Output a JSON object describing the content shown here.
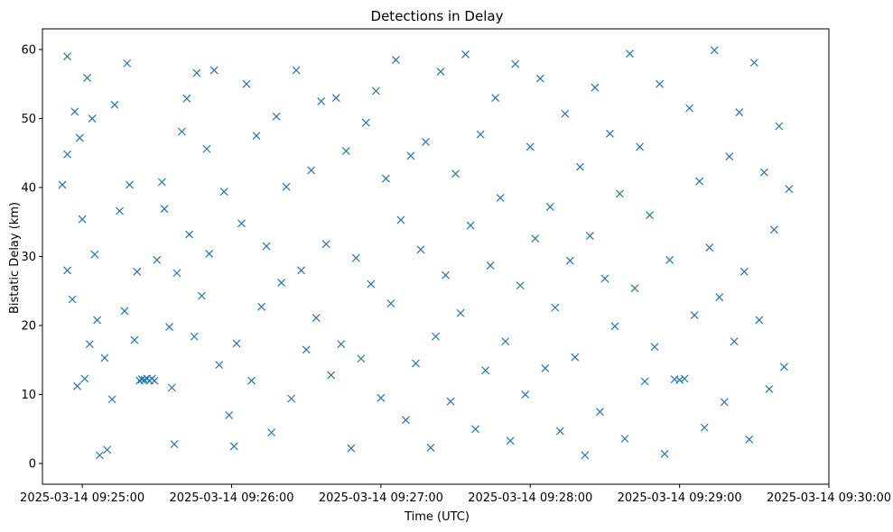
{
  "chart_data": {
    "type": "scatter",
    "title": "Detections in Delay",
    "xlabel": "Time (UTC)",
    "ylabel": "Bistatic Delay (km)",
    "marker": "x",
    "color": "#1f77b4",
    "grid": false,
    "xlim": [
      "2025-03-14 09:24:44",
      "2025-03-14 09:30:00"
    ],
    "ylim": [
      -3,
      63
    ],
    "x_ticks": [
      "2025-03-14 09:25:00",
      "2025-03-14 09:26:00",
      "2025-03-14 09:27:00",
      "2025-03-14 09:28:00",
      "2025-03-14 09:29:00",
      "2025-03-14 09:30:00"
    ],
    "y_ticks": [
      0,
      10,
      20,
      30,
      40,
      50,
      60
    ],
    "series": [
      {
        "points": [
          [
            "2025-03-14 09:24:52",
            40.4
          ],
          [
            "2025-03-14 09:24:54",
            59.0
          ],
          [
            "2025-03-14 09:24:54",
            44.8
          ],
          [
            "2025-03-14 09:24:54",
            28.0
          ],
          [
            "2025-03-14 09:24:56",
            23.8
          ],
          [
            "2025-03-14 09:24:57",
            51.0
          ],
          [
            "2025-03-14 09:24:58",
            11.2
          ],
          [
            "2025-03-14 09:24:59",
            47.2
          ],
          [
            "2025-03-14 09:25:00",
            35.4
          ],
          [
            "2025-03-14 09:25:01",
            12.3
          ],
          [
            "2025-03-14 09:25:02",
            55.9
          ],
          [
            "2025-03-14 09:25:03",
            17.3
          ],
          [
            "2025-03-14 09:25:04",
            50.0
          ],
          [
            "2025-03-14 09:25:05",
            30.3
          ],
          [
            "2025-03-14 09:25:06",
            20.8
          ],
          [
            "2025-03-14 09:25:07",
            1.2
          ],
          [
            "2025-03-14 09:25:09",
            15.3
          ],
          [
            "2025-03-14 09:25:10",
            2.0
          ],
          [
            "2025-03-14 09:25:12",
            9.3
          ],
          [
            "2025-03-14 09:25:13",
            52.0
          ],
          [
            "2025-03-14 09:25:15",
            36.6
          ],
          [
            "2025-03-14 09:25:17",
            22.1
          ],
          [
            "2025-03-14 09:25:18",
            58.0
          ],
          [
            "2025-03-14 09:25:19",
            40.4
          ],
          [
            "2025-03-14 09:25:21",
            17.9
          ],
          [
            "2025-03-14 09:25:22",
            27.8
          ],
          [
            "2025-03-14 09:25:23",
            12.0
          ],
          [
            "2025-03-14 09:25:24",
            12.2
          ],
          [
            "2025-03-14 09:25:25",
            12.1
          ],
          [
            "2025-03-14 09:25:26",
            12.3
          ],
          [
            "2025-03-14 09:25:27",
            12.0
          ],
          [
            "2025-03-14 09:25:28",
            12.3
          ],
          [
            "2025-03-14 09:25:29",
            12.0
          ],
          [
            "2025-03-14 09:25:30",
            29.5
          ],
          [
            "2025-03-14 09:25:32",
            40.8
          ],
          [
            "2025-03-14 09:25:33",
            36.9
          ],
          [
            "2025-03-14 09:25:35",
            19.8
          ],
          [
            "2025-03-14 09:25:36",
            11.0
          ],
          [
            "2025-03-14 09:25:37",
            2.8
          ],
          [
            "2025-03-14 09:25:38",
            27.6
          ],
          [
            "2025-03-14 09:25:40",
            48.1
          ],
          [
            "2025-03-14 09:25:42",
            52.9
          ],
          [
            "2025-03-14 09:25:43",
            33.2
          ],
          [
            "2025-03-14 09:25:45",
            18.4
          ],
          [
            "2025-03-14 09:25:46",
            56.6
          ],
          [
            "2025-03-14 09:25:48",
            24.3
          ],
          [
            "2025-03-14 09:25:50",
            45.6
          ],
          [
            "2025-03-14 09:25:51",
            30.4
          ],
          [
            "2025-03-14 09:25:53",
            57.0
          ],
          [
            "2025-03-14 09:25:55",
            14.3
          ],
          [
            "2025-03-14 09:25:57",
            39.4
          ],
          [
            "2025-03-14 09:25:59",
            7.0
          ],
          [
            "2025-03-14 09:26:01",
            2.5
          ],
          [
            "2025-03-14 09:26:02",
            17.4
          ],
          [
            "2025-03-14 09:26:04",
            34.8
          ],
          [
            "2025-03-14 09:26:06",
            55.0
          ],
          [
            "2025-03-14 09:26:08",
            12.0
          ],
          [
            "2025-03-14 09:26:10",
            47.5
          ],
          [
            "2025-03-14 09:26:12",
            22.7
          ],
          [
            "2025-03-14 09:26:14",
            31.5
          ],
          [
            "2025-03-14 09:26:16",
            4.5
          ],
          [
            "2025-03-14 09:26:18",
            50.3
          ],
          [
            "2025-03-14 09:26:20",
            26.2
          ],
          [
            "2025-03-14 09:26:22",
            40.1
          ],
          [
            "2025-03-14 09:26:24",
            9.4
          ],
          [
            "2025-03-14 09:26:26",
            57.0
          ],
          [
            "2025-03-14 09:26:28",
            28.0
          ],
          [
            "2025-03-14 09:26:30",
            16.5
          ],
          [
            "2025-03-14 09:26:32",
            42.5
          ],
          [
            "2025-03-14 09:26:34",
            21.1
          ],
          [
            "2025-03-14 09:26:36",
            52.5
          ],
          [
            "2025-03-14 09:26:38",
            31.8
          ],
          [
            "2025-03-14 09:26:40",
            12.8
          ],
          [
            "2025-03-14 09:26:42",
            53.0
          ],
          [
            "2025-03-14 09:26:44",
            17.3
          ],
          [
            "2025-03-14 09:26:46",
            45.3
          ],
          [
            "2025-03-14 09:26:48",
            2.2
          ],
          [
            "2025-03-14 09:26:50",
            29.8
          ],
          [
            "2025-03-14 09:26:52",
            15.2
          ],
          [
            "2025-03-14 09:26:54",
            49.4
          ],
          [
            "2025-03-14 09:26:56",
            26.0
          ],
          [
            "2025-03-14 09:26:58",
            54.0
          ],
          [
            "2025-03-14 09:27:00",
            9.5
          ],
          [
            "2025-03-14 09:27:02",
            41.3
          ],
          [
            "2025-03-14 09:27:04",
            23.2
          ],
          [
            "2025-03-14 09:27:06",
            58.5
          ],
          [
            "2025-03-14 09:27:08",
            35.3
          ],
          [
            "2025-03-14 09:27:10",
            6.3
          ],
          [
            "2025-03-14 09:27:12",
            44.6
          ],
          [
            "2025-03-14 09:27:14",
            14.5
          ],
          [
            "2025-03-14 09:27:16",
            31.0
          ],
          [
            "2025-03-14 09:27:18",
            46.6
          ],
          [
            "2025-03-14 09:27:20",
            2.3
          ],
          [
            "2025-03-14 09:27:22",
            18.4
          ],
          [
            "2025-03-14 09:27:24",
            56.8
          ],
          [
            "2025-03-14 09:27:26",
            27.3
          ],
          [
            "2025-03-14 09:27:28",
            9.0
          ],
          [
            "2025-03-14 09:27:30",
            42.0
          ],
          [
            "2025-03-14 09:27:32",
            21.8
          ],
          [
            "2025-03-14 09:27:34",
            59.3
          ],
          [
            "2025-03-14 09:27:36",
            34.5
          ],
          [
            "2025-03-14 09:27:38",
            5.0
          ],
          [
            "2025-03-14 09:27:40",
            47.7
          ],
          [
            "2025-03-14 09:27:42",
            13.5
          ],
          [
            "2025-03-14 09:27:44",
            28.7
          ],
          [
            "2025-03-14 09:27:46",
            53.0
          ],
          [
            "2025-03-14 09:27:48",
            38.5
          ],
          [
            "2025-03-14 09:27:50",
            17.7
          ],
          [
            "2025-03-14 09:27:52",
            3.3
          ],
          [
            "2025-03-14 09:27:54",
            57.9
          ],
          [
            "2025-03-14 09:27:56",
            25.8
          ],
          [
            "2025-03-14 09:27:58",
            10.0
          ],
          [
            "2025-03-14 09:28:00",
            45.9
          ],
          [
            "2025-03-14 09:28:02",
            32.6
          ],
          [
            "2025-03-14 09:28:04",
            55.8
          ],
          [
            "2025-03-14 09:28:06",
            13.8
          ],
          [
            "2025-03-14 09:28:08",
            37.2
          ],
          [
            "2025-03-14 09:28:10",
            22.6
          ],
          [
            "2025-03-14 09:28:12",
            4.7
          ],
          [
            "2025-03-14 09:28:14",
            50.7
          ],
          [
            "2025-03-14 09:28:16",
            29.4
          ],
          [
            "2025-03-14 09:28:18",
            15.4
          ],
          [
            "2025-03-14 09:28:20",
            43.0
          ],
          [
            "2025-03-14 09:28:22",
            1.2
          ],
          [
            "2025-03-14 09:28:24",
            33.0
          ],
          [
            "2025-03-14 09:28:26",
            54.5
          ],
          [
            "2025-03-14 09:28:28",
            7.5
          ],
          [
            "2025-03-14 09:28:30",
            26.8
          ],
          [
            "2025-03-14 09:28:32",
            47.8
          ],
          [
            "2025-03-14 09:28:34",
            19.9
          ],
          [
            "2025-03-14 09:28:36",
            39.1
          ],
          [
            "2025-03-14 09:28:38",
            3.6
          ],
          [
            "2025-03-14 09:28:40",
            59.4
          ],
          [
            "2025-03-14 09:28:42",
            25.4
          ],
          [
            "2025-03-14 09:28:44",
            45.9
          ],
          [
            "2025-03-14 09:28:46",
            11.9
          ],
          [
            "2025-03-14 09:28:48",
            36.0
          ],
          [
            "2025-03-14 09:28:50",
            16.9
          ],
          [
            "2025-03-14 09:28:52",
            55.0
          ],
          [
            "2025-03-14 09:28:54",
            1.4
          ],
          [
            "2025-03-14 09:28:56",
            29.5
          ],
          [
            "2025-03-14 09:28:58",
            12.2
          ],
          [
            "2025-03-14 09:29:00",
            12.1
          ],
          [
            "2025-03-14 09:29:02",
            12.3
          ],
          [
            "2025-03-14 09:29:04",
            51.5
          ],
          [
            "2025-03-14 09:29:06",
            21.5
          ],
          [
            "2025-03-14 09:29:08",
            40.9
          ],
          [
            "2025-03-14 09:29:10",
            5.2
          ],
          [
            "2025-03-14 09:29:12",
            31.3
          ],
          [
            "2025-03-14 09:29:14",
            59.9
          ],
          [
            "2025-03-14 09:29:16",
            24.1
          ],
          [
            "2025-03-14 09:29:18",
            8.9
          ],
          [
            "2025-03-14 09:29:20",
            44.5
          ],
          [
            "2025-03-14 09:29:22",
            17.7
          ],
          [
            "2025-03-14 09:29:24",
            50.9
          ],
          [
            "2025-03-14 09:29:26",
            27.8
          ],
          [
            "2025-03-14 09:29:28",
            3.5
          ],
          [
            "2025-03-14 09:29:30",
            58.1
          ],
          [
            "2025-03-14 09:29:32",
            20.8
          ],
          [
            "2025-03-14 09:29:34",
            42.2
          ],
          [
            "2025-03-14 09:29:36",
            10.8
          ],
          [
            "2025-03-14 09:29:38",
            33.9
          ],
          [
            "2025-03-14 09:29:40",
            48.9
          ],
          [
            "2025-03-14 09:29:42",
            14.0
          ],
          [
            "2025-03-14 09:29:44",
            39.8
          ]
        ]
      }
    ]
  }
}
